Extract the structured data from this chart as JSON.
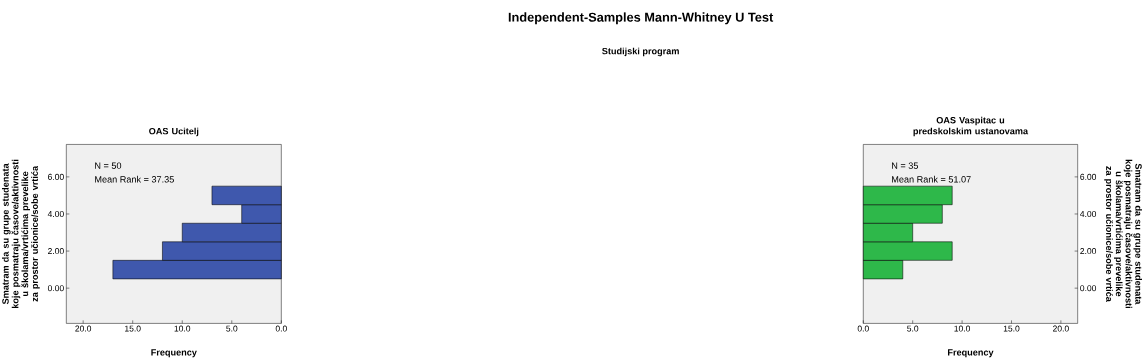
{
  "chart_data": [
    {
      "type": "histogram",
      "orientation": "horizontal",
      "title": "OAS Ucitelj",
      "xlabel": "Frequency",
      "ylabel": "Smatram da su grupe studenata koje posmatraju časove/aktivnosti u školama/vrtićima prevelike za prostor učionice/sobe vrtića",
      "bins": [
        0.5,
        1.5,
        2.5,
        3.5,
        4.5,
        5.5
      ],
      "values": [
        17,
        12,
        10,
        4,
        7
      ],
      "color": "#3f58ad",
      "xlim": [
        21.7,
        0
      ],
      "xticks": [
        {
          "value": 20,
          "label": "20.0"
        },
        {
          "value": 15,
          "label": "15.0"
        },
        {
          "value": 10,
          "label": "10.0"
        },
        {
          "value": 5,
          "label": "5.0"
        },
        {
          "value": 0,
          "label": "0.0"
        }
      ],
      "ylim": [
        -1.9,
        7.75
      ],
      "yticks": [
        {
          "value": 0,
          "label": "0.00"
        },
        {
          "value": 2,
          "label": "2.00"
        },
        {
          "value": 4,
          "label": "4.00"
        },
        {
          "value": 6,
          "label": "6.00"
        }
      ],
      "grid": false,
      "annotations": [
        "N = 50",
        "Mean Rank = 37.35",
        "Independent-Samples Mann-Whitney U Test",
        "Studijski program"
      ]
    },
    {
      "type": "histogram",
      "orientation": "horizontal",
      "title": "OAS Vaspitac u predskolskim ustanovama",
      "xlabel": "Frequency",
      "ylabel": "Smatram da su grupe studenata koje posmatraju časove/aktivnosti u školama/vrtićima prevelike za prostor učionice/sobe vrtića",
      "bins": [
        0.5,
        1.5,
        2.5,
        3.5,
        4.5,
        5.5
      ],
      "values": [
        4,
        9,
        5,
        8,
        9
      ],
      "color": "#2eb84a",
      "xlim": [
        0,
        21.7
      ],
      "xticks": [
        {
          "value": 0,
          "label": "0.0"
        },
        {
          "value": 5,
          "label": "5.0"
        },
        {
          "value": 10,
          "label": "10.0"
        },
        {
          "value": 15,
          "label": "15.0"
        },
        {
          "value": 20,
          "label": "20.0"
        }
      ],
      "ylim": [
        -1.9,
        7.75
      ],
      "yticks": [
        {
          "value": 0,
          "label": "0.00"
        },
        {
          "value": 2,
          "label": "2.00"
        },
        {
          "value": 4,
          "label": "4.00"
        },
        {
          "value": 6,
          "label": "6.00"
        }
      ],
      "grid": false,
      "annotations": [
        "N = 35",
        "Mean Rank = 51.07"
      ]
    }
  ]
}
